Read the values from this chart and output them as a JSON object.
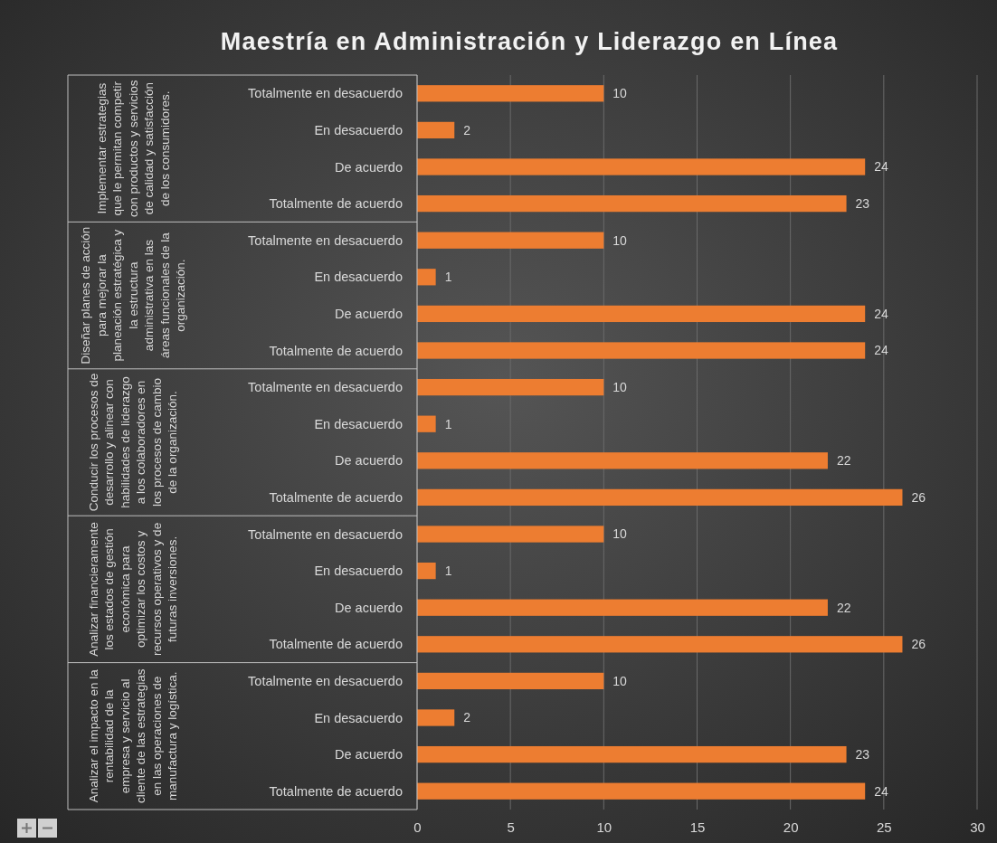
{
  "chart_data": {
    "type": "bar",
    "orientation": "horizontal",
    "title": "Maestría en Administración y Liderazgo en Línea",
    "categories": [
      "Totalmente en desacuerdo",
      "En desacuerdo",
      "De acuerdo",
      "Totalmente de acuerdo",
      "Totalmente en desacuerdo",
      "En desacuerdo",
      "De acuerdo",
      "Totalmente de acuerdo",
      "Totalmente en desacuerdo",
      "En desacuerdo",
      "De acuerdo",
      "Totalmente de acuerdo",
      "Totalmente en desacuerdo",
      "En desacuerdo",
      "De acuerdo",
      "Totalmente de acuerdo",
      "Totalmente en desacuerdo",
      "En desacuerdo",
      "De acuerdo",
      "Totalmente de acuerdo"
    ],
    "values": [
      10,
      2,
      24,
      23,
      10,
      1,
      24,
      24,
      10,
      1,
      22,
      26,
      10,
      1,
      22,
      26,
      10,
      2,
      23,
      24
    ],
    "color": "#ed7d31",
    "xlim": [
      0,
      30
    ],
    "xticks": [
      0,
      5,
      10,
      15,
      20,
      25,
      30
    ],
    "grid": "x",
    "data_labels": true,
    "annotations": [
      "Implementar estrategias que le permitan competir con productos y servicios de calidad y satisfacción de los consumidores.",
      "Diseñar planes de acción para mejorar la planeación estratégica y la estructura administrativa en las áreas funcionales de la organización.",
      "Conducir los procesos de desarrollo y alinear con habilidades de liderazgo a los colaboradores en los procesos de cambio de la organización.",
      "Analizar financieramente los estados de gestión económica para optimizar los costos y recursos operativos y de futuras inversiones.",
      "Analizar el impacto en la rentabilidad de la empresa y servicio al cliente de las estrategias en las operaciones de manufactura y logística."
    ]
  }
}
